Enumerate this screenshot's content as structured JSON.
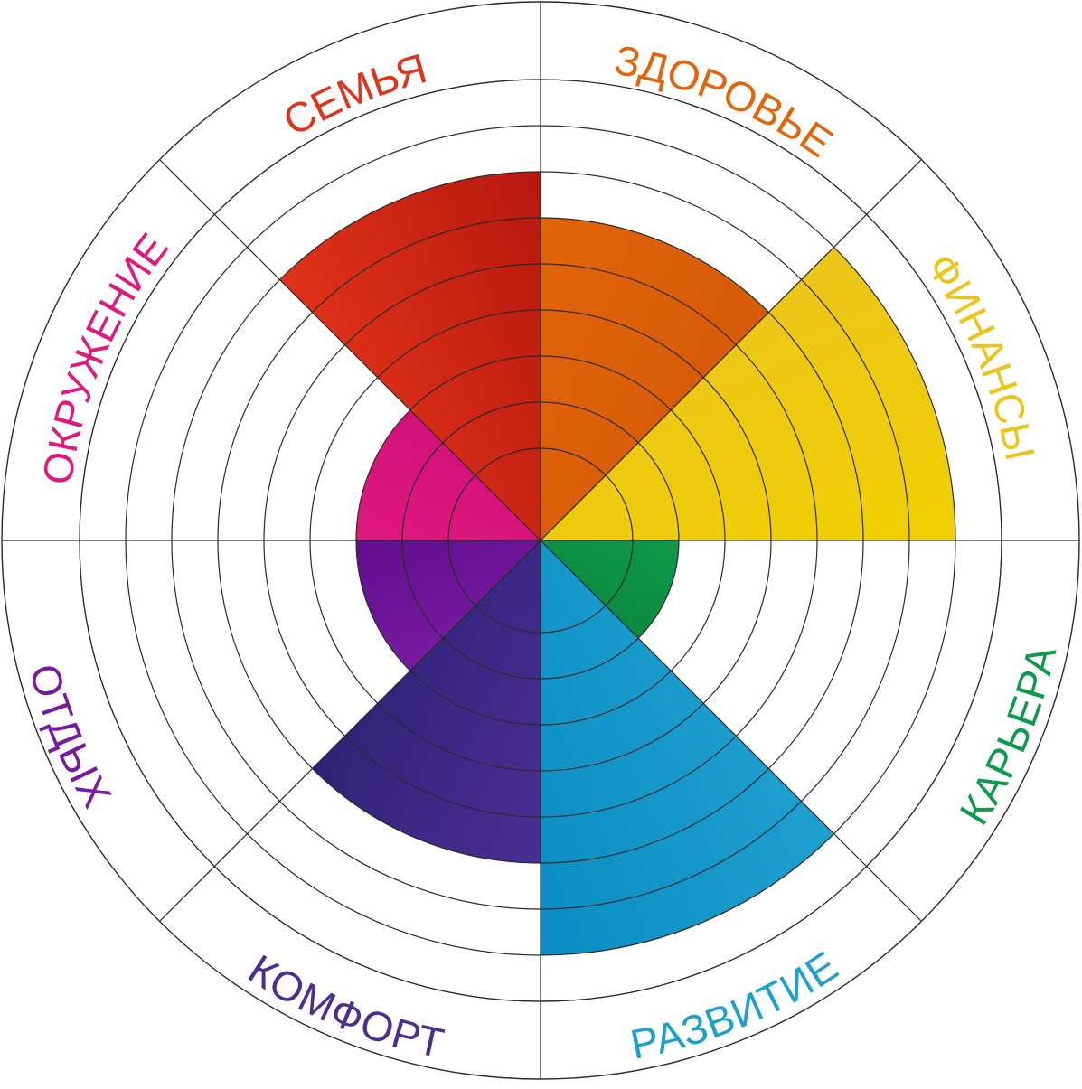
{
  "chart_data": {
    "type": "polar-bar",
    "title": "",
    "rings": 10,
    "grid": true,
    "sectors": [
      {
        "label": "ЗДОРОВЬЕ",
        "value": 6,
        "color": "#E2650A",
        "dark": "#D65A08"
      },
      {
        "label": "ФИНАНСЫ",
        "value": 8,
        "color": "#ECC51A",
        "dark": "#F0D002"
      },
      {
        "label": "КАРЬЕРА",
        "value": 2,
        "color": "#0E9A4A",
        "dark": "#0A8A40"
      },
      {
        "label": "РАЗВИТИЕ",
        "value": 8,
        "color": "#1EA0CF",
        "dark": "#0A8DC2"
      },
      {
        "label": "КОМФОРТ",
        "value": 6,
        "color": "#4A2F93",
        "dark": "#2E2377"
      },
      {
        "label": "ОТДЫХ",
        "value": 3,
        "color": "#781AA0",
        "dark": "#5F0F8C"
      },
      {
        "label": "ОКРУЖЕНИЕ",
        "value": 3,
        "color": "#E0197E",
        "dark": "#D11178"
      },
      {
        "label": "СЕМЬЯ",
        "value": 7,
        "color": "#E03318",
        "dark": "#B7180F"
      }
    ]
  }
}
